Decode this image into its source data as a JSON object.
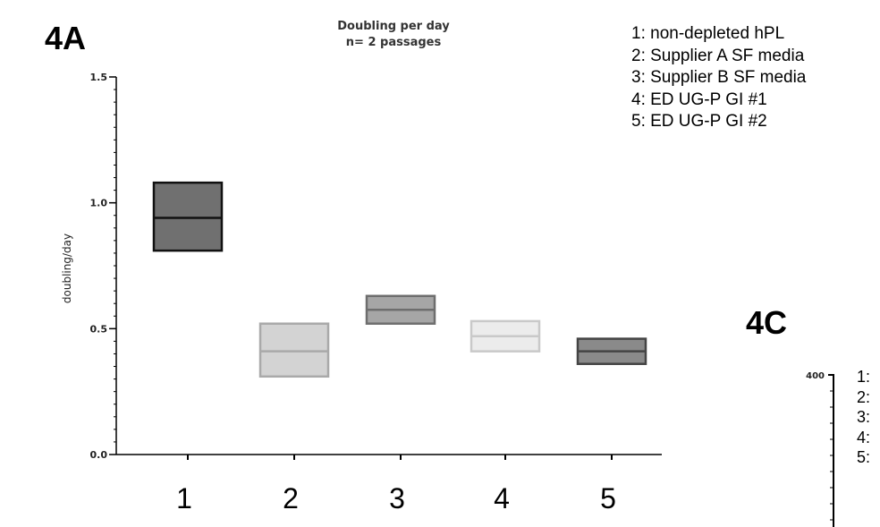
{
  "panel_labels": {
    "a": "4A",
    "c": "4C"
  },
  "chart_data": {
    "type": "box",
    "title": [
      "Doubling per day",
      "n= 2 passages"
    ],
    "ylabel": "doubling/day",
    "ylim": [
      0,
      1.5
    ],
    "yticks": [
      0.0,
      0.5,
      1.0,
      1.5
    ],
    "ytick_labels": [
      "0.0",
      "0.5",
      "1.0",
      "1.5"
    ],
    "categories": [
      "1",
      "2",
      "3",
      "4",
      "5"
    ],
    "boxes": [
      {
        "min": 0.81,
        "median": 0.94,
        "max": 1.08,
        "fill": "#707070",
        "edge": "#111111"
      },
      {
        "min": 0.31,
        "median": 0.41,
        "max": 0.52,
        "fill": "#d3d3d3",
        "edge": "#a9a9a9"
      },
      {
        "min": 0.52,
        "median": 0.575,
        "max": 0.63,
        "fill": "#a6a6a6",
        "edge": "#6e6e6e"
      },
      {
        "min": 0.41,
        "median": 0.47,
        "max": 0.53,
        "fill": "#ececec",
        "edge": "#c9c9c9"
      },
      {
        "min": 0.36,
        "median": 0.41,
        "max": 0.46,
        "fill": "#8a8a8a",
        "edge": "#444444"
      }
    ],
    "legend": [
      "1: non-depleted hPL",
      "2: Supplier A SF media",
      "3: Supplier B SF media",
      "4: ED UG-P GI #1",
      "5: ED UG-P GI #2"
    ]
  },
  "panel_c": {
    "ytick_top": "400",
    "legend": [
      "1:",
      "2:",
      "3:",
      "4:",
      "5:"
    ]
  }
}
